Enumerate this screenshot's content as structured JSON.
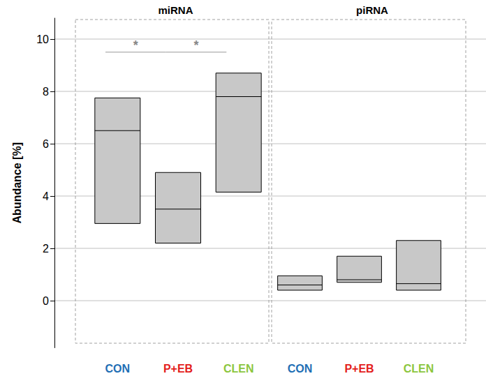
{
  "chart_data": {
    "type": "range_box",
    "y_label": "Abundance [%]",
    "ylim": [
      -1.8,
      10.8
    ],
    "yticks": [
      0,
      2,
      4,
      6,
      8,
      10
    ],
    "grid": true,
    "color": "#c8c8c8",
    "panels": [
      {
        "title": "miRNA",
        "categories": [
          "CON",
          "P+EB",
          "CLEN"
        ],
        "colors": [
          "#1f6fb5",
          "#e3201b",
          "#8cc63f"
        ],
        "low": [
          2.95,
          2.2,
          4.15
        ],
        "median": [
          6.5,
          3.5,
          7.8
        ],
        "high": [
          7.75,
          4.9,
          8.7
        ],
        "significance": [
          {
            "from": 0,
            "to": 1,
            "y": 9.5,
            "label": "*"
          },
          {
            "from": 1,
            "to": 2,
            "y": 9.5,
            "label": "*"
          }
        ]
      },
      {
        "title": "piRNA",
        "categories": [
          "CON",
          "P+EB",
          "CLEN"
        ],
        "colors": [
          "#1f6fb5",
          "#e3201b",
          "#8cc63f"
        ],
        "low": [
          0.4,
          0.7,
          0.4
        ],
        "median": [
          0.6,
          0.8,
          0.65
        ],
        "high": [
          0.95,
          1.7,
          2.3
        ],
        "significance": []
      }
    ]
  }
}
